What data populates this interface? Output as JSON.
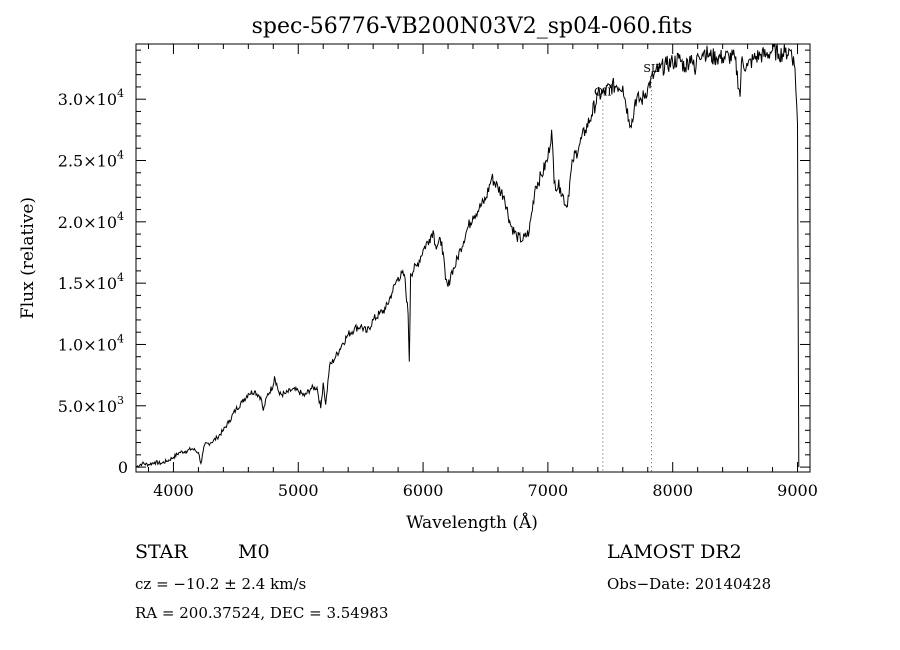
{
  "chart_data": {
    "type": "line",
    "title": "spec-56776-VB200N03V2_sp04-060.fits",
    "xlabel": "Wavelength (Å)",
    "ylabel": "Flux (relative)",
    "xlim": [
      3700,
      9100
    ],
    "ylim": [
      -400,
      34500
    ],
    "x_ticks": [
      {
        "value": 4000,
        "label": "4000"
      },
      {
        "value": 5000,
        "label": "5000"
      },
      {
        "value": 6000,
        "label": "6000"
      },
      {
        "value": 7000,
        "label": "7000"
      },
      {
        "value": 8000,
        "label": "8000"
      },
      {
        "value": 9000,
        "label": "9000"
      }
    ],
    "y_ticks": [
      {
        "value": 0,
        "mantissa": "0",
        "exponent": ""
      },
      {
        "value": 5000,
        "mantissa": "5.0×10",
        "exponent": "3"
      },
      {
        "value": 10000,
        "mantissa": "1.0×10",
        "exponent": "4"
      },
      {
        "value": 15000,
        "mantissa": "1.5×10",
        "exponent": "4"
      },
      {
        "value": 20000,
        "mantissa": "2.0×10",
        "exponent": "4"
      },
      {
        "value": 25000,
        "mantissa": "2.5×10",
        "exponent": "4"
      },
      {
        "value": 30000,
        "mantissa": "3.0×10",
        "exponent": "4"
      }
    ],
    "line_markers": [
      {
        "label": "OII",
        "wavelength": 7440,
        "label_flux": 30300
      },
      {
        "label": "SII",
        "wavelength": 7830,
        "label_flux": 32200
      }
    ],
    "series": [
      {
        "x": [
          3700,
          3750,
          3800,
          3850,
          3900,
          3950,
          4000,
          4050,
          4100,
          4150,
          4200,
          4220,
          4250,
          4300,
          4350,
          4400,
          4450,
          4500,
          4550,
          4600,
          4650,
          4700,
          4720,
          4750,
          4800,
          4810,
          4850,
          4900,
          4950,
          5000,
          5050,
          5100,
          5150,
          5180,
          5200,
          5220,
          5250,
          5300,
          5350,
          5400,
          5450,
          5500,
          5550,
          5600,
          5650,
          5700,
          5750,
          5800,
          5850,
          5880,
          5890,
          5900,
          5950,
          6000,
          6050,
          6080,
          6100,
          6150,
          6180,
          6200,
          6230,
          6250,
          6300,
          6350,
          6400,
          6450,
          6500,
          6550,
          6600,
          6650,
          6700,
          6750,
          6800,
          6850,
          6900,
          6950,
          7000,
          7030,
          7050,
          7100,
          7150,
          7200,
          7250,
          7300,
          7350,
          7400,
          7450,
          7500,
          7550,
          7600,
          7650,
          7680,
          7700,
          7750,
          7800,
          7850,
          7900,
          7950,
          8000,
          8050,
          8100,
          8150,
          8180,
          8200,
          8250,
          8300,
          8350,
          8400,
          8450,
          8500,
          8540,
          8550,
          8600,
          8650,
          8700,
          8750,
          8800,
          8850,
          8900,
          8950,
          8980,
          9000,
          9010
        ],
        "values": [
          0,
          300,
          200,
          400,
          300,
          500,
          800,
          1200,
          1300,
          1500,
          1200,
          300,
          1800,
          2000,
          2400,
          3000,
          3800,
          4700,
          5300,
          6000,
          6200,
          5700,
          4600,
          5800,
          6700,
          7400,
          5900,
          6000,
          6300,
          6200,
          5800,
          6400,
          6500,
          4800,
          6900,
          5100,
          8200,
          9000,
          10000,
          10800,
          11300,
          11500,
          11000,
          12000,
          12500,
          12900,
          14200,
          15500,
          15700,
          12500,
          8600,
          15800,
          16400,
          17700,
          18600,
          19300,
          18100,
          18400,
          15300,
          14700,
          16000,
          16200,
          17800,
          19300,
          20500,
          21100,
          21800,
          23600,
          22800,
          22100,
          19800,
          18800,
          18500,
          19200,
          22900,
          23800,
          25200,
          27500,
          23200,
          22800,
          21200,
          25000,
          26200,
          27500,
          28700,
          30300,
          30500,
          31000,
          31100,
          31100,
          28300,
          28200,
          30000,
          29900,
          30900,
          32000,
          32500,
          32800,
          33000,
          33300,
          32600,
          33600,
          32000,
          33700,
          33900,
          33500,
          33400,
          33400,
          33500,
          33300,
          30200,
          33000,
          32700,
          33300,
          33600,
          33600,
          34000,
          33700,
          33800,
          34000,
          32500,
          28000,
          0
        ]
      }
    ]
  },
  "info": {
    "object_type": "STAR",
    "subclass": "M0",
    "survey": "LAMOST DR2",
    "redshift": "cz = −10.2 ± 2.4 km/s",
    "obs_date": "Obs−Date: 20140428",
    "coordinates": "RA = 200.37524, DEC =   3.54983"
  },
  "colors": {
    "background": "#ffffff",
    "line": "#000000",
    "marker_line": "#555555"
  }
}
